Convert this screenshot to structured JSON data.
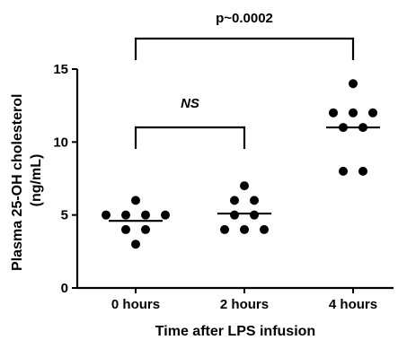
{
  "chart_data": {
    "type": "scatter",
    "xlabel": "Time after LPS infusion",
    "ylabel_line1": "Plasma 25-OH cholesterol",
    "ylabel_line2": "(ng/mL)",
    "ylim": [
      0,
      15
    ],
    "yticks": [
      0,
      5,
      10,
      15
    ],
    "categories": [
      "0 hours",
      "2 hours",
      "4 hours"
    ],
    "groups": [
      {
        "category": "0 hours",
        "points": [
          6,
          5,
          5,
          5,
          5,
          4,
          4,
          3
        ],
        "mean_line": 4.6
      },
      {
        "category": "2 hours",
        "points": [
          7,
          6,
          6,
          5,
          5,
          4,
          4,
          4
        ],
        "mean_line": 5.1
      },
      {
        "category": "4 hours",
        "points": [
          14,
          12,
          12,
          12,
          11,
          11,
          8,
          8
        ],
        "mean_line": 11
      }
    ],
    "annotations": [
      {
        "text": "NS",
        "between": [
          "0 hours",
          "2 hours"
        ],
        "style": "italic"
      },
      {
        "text": "p~0.0002",
        "between": [
          "0 hours",
          "4 hours"
        ]
      }
    ],
    "grid": false,
    "legend": "none"
  }
}
